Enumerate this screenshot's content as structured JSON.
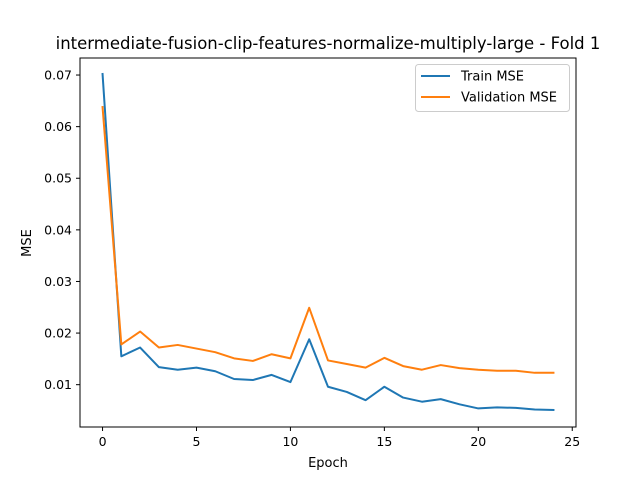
{
  "chart_data": {
    "type": "line",
    "title": "intermediate-fusion-clip-features-normalize-multiply-large - Fold 1",
    "xlabel": "Epoch",
    "ylabel": "MSE",
    "xlim": [
      -1.2,
      25.2
    ],
    "ylim": [
      0.0018,
      0.0733
    ],
    "xticks": [
      0,
      5,
      10,
      15,
      20,
      25
    ],
    "xtick_labels": [
      "0",
      "5",
      "10",
      "15",
      "20",
      "25"
    ],
    "yticks": [
      0.01,
      0.02,
      0.03,
      0.04,
      0.05,
      0.06,
      0.07
    ],
    "ytick_labels": [
      "0.01",
      "0.02",
      "0.03",
      "0.04",
      "0.05",
      "0.06",
      "0.07"
    ],
    "grid": false,
    "legend_position": "top-right",
    "x": [
      0,
      1,
      2,
      3,
      4,
      5,
      6,
      7,
      8,
      9,
      10,
      11,
      12,
      13,
      14,
      15,
      16,
      17,
      18,
      19,
      20,
      21,
      22,
      23,
      24
    ],
    "series": [
      {
        "name": "Train MSE",
        "color": "#1f77b4",
        "values": [
          0.0702,
          0.0155,
          0.0172,
          0.0134,
          0.0129,
          0.0133,
          0.0126,
          0.0111,
          0.0109,
          0.0119,
          0.0105,
          0.0188,
          0.0096,
          0.0086,
          0.007,
          0.0096,
          0.0075,
          0.0067,
          0.0072,
          0.0062,
          0.0054,
          0.0056,
          0.0055,
          0.0052,
          0.0051
        ]
      },
      {
        "name": "Validation MSE",
        "color": "#ff7f0e",
        "values": [
          0.0638,
          0.0178,
          0.0203,
          0.0172,
          0.0177,
          0.017,
          0.0163,
          0.0151,
          0.0146,
          0.0159,
          0.0151,
          0.0249,
          0.0147,
          0.014,
          0.0133,
          0.0152,
          0.0136,
          0.0129,
          0.0138,
          0.0132,
          0.0129,
          0.0127,
          0.0127,
          0.0123,
          0.0123
        ]
      }
    ]
  }
}
